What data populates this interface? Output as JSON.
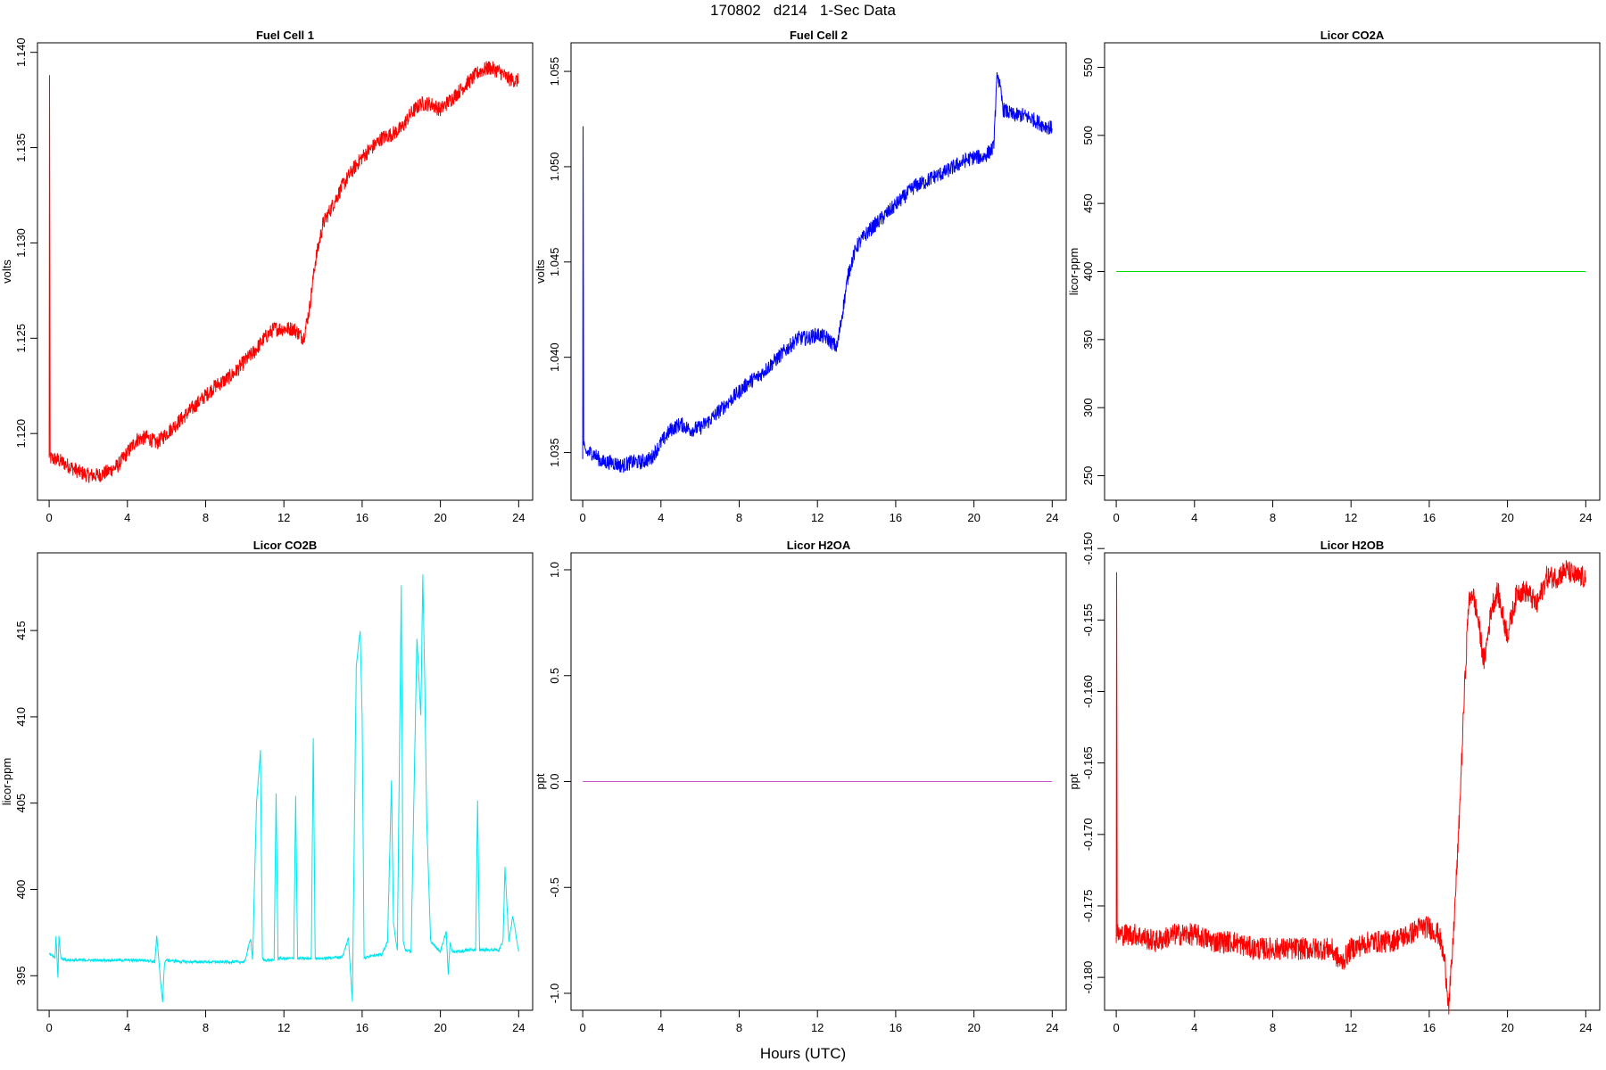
{
  "title": "170802   d214   1-Sec Data",
  "xlabel": "Hours (UTC)",
  "chart_data": [
    {
      "type": "line",
      "title": "Fuel Cell 1",
      "ylabel": "volts",
      "color": "#ff0000",
      "xlim": [
        0,
        24
      ],
      "ylim": [
        1.1165,
        1.1405
      ],
      "xticks": [
        0,
        4,
        8,
        12,
        16,
        20,
        24
      ],
      "yticks": [
        1.12,
        1.125,
        1.13,
        1.135,
        1.14
      ],
      "ytick_labels": [
        "1.120",
        "1.125",
        "1.130",
        "1.135",
        "1.140"
      ],
      "noise": 0.0004,
      "x": [
        0,
        0.02,
        0.05,
        0.1,
        0.5,
        1,
        1.5,
        2,
        2.5,
        3,
        3.5,
        4,
        4.5,
        5,
        5.5,
        6,
        6.5,
        7,
        7.5,
        8,
        8.5,
        9,
        9.5,
        10,
        10.5,
        11,
        11.5,
        12,
        12.5,
        13,
        13.3,
        13.6,
        14,
        14.5,
        15,
        15.5,
        16,
        16.5,
        17,
        17.5,
        18,
        18.5,
        19,
        19.5,
        20,
        20.5,
        21,
        21.5,
        22,
        22.5,
        23,
        23.5,
        24
      ],
      "values": [
        1.1186,
        1.1387,
        1.1187,
        1.1187,
        1.1186,
        1.1183,
        1.118,
        1.1178,
        1.1178,
        1.118,
        1.1183,
        1.119,
        1.1197,
        1.1198,
        1.1195,
        1.12,
        1.1205,
        1.121,
        1.1215,
        1.122,
        1.1225,
        1.1228,
        1.1232,
        1.1238,
        1.1243,
        1.125,
        1.1255,
        1.1255,
        1.1255,
        1.125,
        1.1265,
        1.129,
        1.131,
        1.132,
        1.133,
        1.1338,
        1.1345,
        1.135,
        1.1355,
        1.1357,
        1.136,
        1.1368,
        1.1373,
        1.1373,
        1.137,
        1.1375,
        1.138,
        1.1385,
        1.139,
        1.1392,
        1.139,
        1.1386,
        1.1385
      ]
    },
    {
      "type": "line",
      "title": "Fuel Cell 2",
      "ylabel": "volts",
      "color": "#0000ff",
      "xlim": [
        0,
        24
      ],
      "ylim": [
        1.0325,
        1.0565
      ],
      "xticks": [
        0,
        4,
        8,
        12,
        16,
        20,
        24
      ],
      "yticks": [
        1.035,
        1.04,
        1.045,
        1.05,
        1.055
      ],
      "ytick_labels": [
        "1.035",
        "1.040",
        "1.045",
        "1.050",
        "1.055"
      ],
      "noise": 0.0004,
      "x": [
        0,
        0.02,
        0.05,
        0.1,
        0.5,
        1,
        1.5,
        2,
        2.5,
        3,
        3.5,
        4,
        4.5,
        5,
        5.5,
        6,
        6.5,
        7,
        7.5,
        8,
        8.5,
        9,
        9.5,
        10,
        10.5,
        11,
        11.5,
        12,
        12.5,
        13,
        13.3,
        13.6,
        14,
        14.5,
        15,
        15.5,
        16,
        16.5,
        17,
        17.5,
        18,
        18.5,
        19,
        19.5,
        20,
        20.5,
        21,
        21.2,
        21.5,
        22,
        22.5,
        23,
        23.5,
        24
      ],
      "values": [
        1.035,
        1.052,
        1.0355,
        1.035,
        1.035,
        1.0345,
        1.0345,
        1.0343,
        1.0345,
        1.0345,
        1.0347,
        1.0355,
        1.0362,
        1.0365,
        1.0362,
        1.0363,
        1.0367,
        1.0372,
        1.0377,
        1.0382,
        1.0387,
        1.039,
        1.0395,
        1.04,
        1.0405,
        1.041,
        1.041,
        1.0412,
        1.041,
        1.0405,
        1.0425,
        1.0445,
        1.0458,
        1.0465,
        1.047,
        1.0475,
        1.048,
        1.0485,
        1.049,
        1.0492,
        1.0495,
        1.0497,
        1.05,
        1.0503,
        1.0505,
        1.0505,
        1.051,
        1.055,
        1.053,
        1.0527,
        1.0527,
        1.0525,
        1.0522,
        1.052
      ]
    },
    {
      "type": "line",
      "title": "Licor CO2A",
      "ylabel": "licor-ppm",
      "color": "#00e000",
      "xlim": [
        0,
        24
      ],
      "ylim": [
        232,
        568
      ],
      "xticks": [
        0,
        4,
        8,
        12,
        16,
        20,
        24
      ],
      "yticks": [
        250,
        300,
        350,
        400,
        450,
        500,
        550
      ],
      "ytick_labels": [
        "250",
        "300",
        "350",
        "400",
        "450",
        "500",
        "550"
      ],
      "noise": 0,
      "x": [
        0,
        24
      ],
      "values": [
        400,
        400
      ]
    },
    {
      "type": "line",
      "title": "Licor CO2B",
      "ylabel": "licor-ppm",
      "color": "#00e5ee",
      "xlim": [
        0,
        24
      ],
      "ylim": [
        393,
        419.5
      ],
      "xticks": [
        0,
        4,
        8,
        12,
        16,
        20,
        24
      ],
      "yticks": [
        395,
        400,
        405,
        410,
        415
      ],
      "ytick_labels": [
        "395",
        "400",
        "405",
        "410",
        "415"
      ],
      "noise": 0.08,
      "x": [
        0,
        0.3,
        0.35,
        0.45,
        0.5,
        0.6,
        1,
        2,
        3,
        4,
        5,
        5.4,
        5.5,
        5.7,
        5.8,
        5.9,
        6,
        7,
        8,
        9,
        10,
        10.3,
        10.4,
        10.6,
        10.8,
        10.9,
        11,
        11.5,
        11.6,
        11.7,
        12,
        12.5,
        12.6,
        12.7,
        13,
        13.4,
        13.5,
        13.6,
        14,
        15,
        15.3,
        15.5,
        15.7,
        15.9,
        16,
        16.1,
        16.3,
        16.5,
        17,
        17.3,
        17.5,
        17.6,
        17.8,
        18,
        18.1,
        18.2,
        18.5,
        18.8,
        19,
        19.1,
        19.2,
        19.3,
        19.5,
        19.8,
        20,
        20.3,
        20.4,
        20.5,
        20.6,
        21,
        21.5,
        21.8,
        21.9,
        22,
        22.5,
        23,
        23.2,
        23.3,
        23.5,
        23.7,
        24
      ],
      "values": [
        396.3,
        396.0,
        397.3,
        394.8,
        397.3,
        396.0,
        395.9,
        395.9,
        395.9,
        395.9,
        395.9,
        395.8,
        397.3,
        394.6,
        393.5,
        395.8,
        395.9,
        395.8,
        395.8,
        395.8,
        395.8,
        397.2,
        395.9,
        405.0,
        408.0,
        396.0,
        395.9,
        395.9,
        405.6,
        396.0,
        396.0,
        396.0,
        405.4,
        396.0,
        396.0,
        396.0,
        408.8,
        396.0,
        396.0,
        396.1,
        397.2,
        393.5,
        413.0,
        415.0,
        410.0,
        396.0,
        396.1,
        396.2,
        396.2,
        397.0,
        406.3,
        398.0,
        396.5,
        417.6,
        397.0,
        396.5,
        396.4,
        414.6,
        410.0,
        418.3,
        412.0,
        404.0,
        397.0,
        396.6,
        396.4,
        397.6,
        395.0,
        397.0,
        396.4,
        396.4,
        396.5,
        396.5,
        405.1,
        396.5,
        396.5,
        396.5,
        397.0,
        401.3,
        397.0,
        398.5,
        396.4
      ]
    },
    {
      "type": "line",
      "title": "Licor H2OA",
      "ylabel": "ppt",
      "color": "#cc55cc",
      "xlim": [
        0,
        24
      ],
      "ylim": [
        -1.08,
        1.08
      ],
      "xticks": [
        0,
        4,
        8,
        12,
        16,
        20,
        24
      ],
      "yticks": [
        -1.0,
        -0.5,
        0.0,
        0.5,
        1.0
      ],
      "ytick_labels": [
        "-1.0",
        "-0.5",
        "0.0",
        "0.5",
        "1.0"
      ],
      "noise": 0,
      "x": [
        0,
        24
      ],
      "values": [
        0,
        0
      ]
    },
    {
      "type": "line",
      "title": "Licor H2OB",
      "ylabel": "ppt",
      "color": "#ff0000",
      "xlim": [
        0,
        24
      ],
      "ylim": [
        -0.1823,
        -0.1503
      ],
      "xticks": [
        0,
        4,
        8,
        12,
        16,
        20,
        24
      ],
      "yticks": [
        -0.18,
        -0.175,
        -0.17,
        -0.165,
        -0.16,
        -0.155,
        -0.15
      ],
      "ytick_labels": [
        "-0.180",
        "-0.175",
        "-0.170",
        "-0.165",
        "-0.160",
        "-0.155",
        "-0.150"
      ],
      "noise": 0.0008,
      "x": [
        0,
        0.02,
        0.05,
        0.1,
        0.5,
        1,
        2,
        3,
        4,
        5,
        6,
        7,
        8,
        9,
        10,
        11,
        11.5,
        12,
        13,
        14,
        15,
        15.5,
        16,
        16.5,
        16.8,
        17,
        17.2,
        17.5,
        17.8,
        18,
        18.2,
        18.5,
        18.8,
        19,
        19.2,
        19.5,
        19.8,
        20,
        20.5,
        21,
        21.5,
        22,
        22.5,
        23,
        23.5,
        24
      ],
      "values": [
        -0.177,
        -0.151,
        -0.177,
        -0.177,
        -0.177,
        -0.177,
        -0.1775,
        -0.177,
        -0.177,
        -0.1775,
        -0.1775,
        -0.178,
        -0.178,
        -0.178,
        -0.178,
        -0.178,
        -0.179,
        -0.178,
        -0.1775,
        -0.1775,
        -0.177,
        -0.1765,
        -0.1765,
        -0.177,
        -0.179,
        -0.182,
        -0.178,
        -0.17,
        -0.16,
        -0.154,
        -0.153,
        -0.155,
        -0.158,
        -0.156,
        -0.154,
        -0.153,
        -0.155,
        -0.156,
        -0.153,
        -0.153,
        -0.154,
        -0.152,
        -0.152,
        -0.1515,
        -0.152,
        -0.152
      ]
    }
  ]
}
